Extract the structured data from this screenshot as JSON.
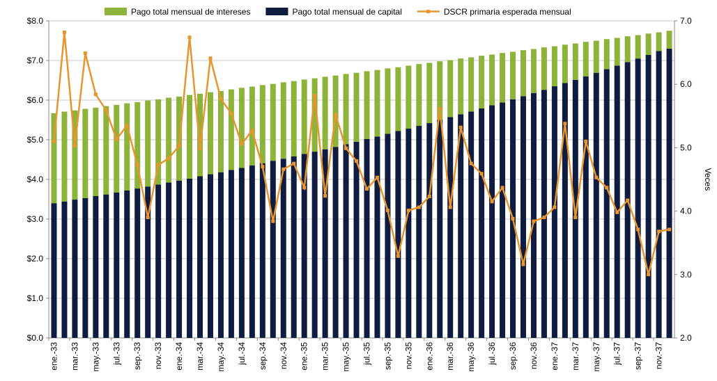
{
  "chart_data": {
    "type": "bar_line",
    "categories": [
      "ene.-33",
      null,
      "mar.-33",
      null,
      "may.-33",
      null,
      "jul.-33",
      null,
      "sep.-33",
      null,
      "nov.-33",
      null,
      "ene.-34",
      null,
      "mar.-34",
      null,
      "may.-34",
      null,
      "jul.-34",
      null,
      "sep.-34",
      null,
      "nov.-34",
      null,
      "ene.-35",
      null,
      "mar.-35",
      null,
      "may.-35",
      null,
      "jul.-35",
      null,
      "sep.-35",
      null,
      "nov.-35",
      null,
      "ene.-36",
      null,
      "mar.-36",
      null,
      "may.-36",
      null,
      "jul.-36",
      null,
      "sep.-36",
      null,
      "nov.-36",
      null,
      "ene.-37",
      null,
      "mar.-37",
      null,
      "may.-37",
      null,
      "jul.-37",
      null,
      "sep.-37",
      null,
      "nov.-37",
      null
    ],
    "series": [
      {
        "name": "Pago total mensual de capital",
        "color": "#0f1c3f",
        "kind": "bar",
        "values": [
          3.4,
          3.44,
          3.49,
          3.53,
          3.58,
          3.62,
          3.67,
          3.72,
          3.77,
          3.82,
          3.87,
          3.92,
          3.97,
          4.02,
          4.08,
          4.13,
          4.18,
          4.24,
          4.29,
          4.35,
          4.41,
          4.47,
          4.52,
          4.58,
          4.64,
          4.7,
          4.76,
          4.82,
          4.89,
          4.95,
          5.02,
          5.08,
          5.15,
          5.22,
          5.28,
          5.35,
          5.42,
          5.5,
          5.57,
          5.64,
          5.71,
          5.79,
          5.87,
          5.94,
          6.02,
          6.1,
          6.18,
          6.26,
          6.35,
          6.43,
          6.51,
          6.6,
          6.69,
          6.78,
          6.87,
          6.96,
          7.05,
          7.14,
          7.24,
          7.3
        ]
      },
      {
        "name": "Pago total mensual de intereses",
        "color": "#8db33a",
        "kind": "bar",
        "values": [
          2.27,
          2.27,
          2.25,
          2.25,
          2.23,
          2.23,
          2.21,
          2.2,
          2.18,
          2.17,
          2.15,
          2.14,
          2.12,
          2.11,
          2.08,
          2.07,
          2.05,
          2.03,
          2.02,
          1.99,
          1.97,
          1.94,
          1.93,
          1.9,
          1.88,
          1.85,
          1.83,
          1.8,
          1.77,
          1.74,
          1.71,
          1.68,
          1.65,
          1.61,
          1.59,
          1.56,
          1.52,
          1.48,
          1.44,
          1.41,
          1.37,
          1.33,
          1.28,
          1.25,
          1.2,
          1.16,
          1.11,
          1.07,
          1.01,
          0.97,
          0.92,
          0.87,
          0.81,
          0.76,
          0.7,
          0.65,
          0.59,
          0.54,
          0.47,
          0.45
        ]
      },
      {
        "name": "DSCR primaria esperada mensual",
        "color": "#e8952e",
        "kind": "line",
        "axis": "y2",
        "values": [
          5.1,
          6.82,
          5.03,
          6.49,
          5.84,
          5.59,
          5.13,
          5.35,
          4.73,
          3.9,
          4.73,
          4.83,
          5.03,
          6.74,
          4.99,
          6.41,
          5.77,
          5.54,
          5.06,
          5.27,
          4.7,
          3.84,
          4.66,
          4.75,
          4.37,
          5.82,
          4.24,
          5.52,
          4.99,
          4.79,
          4.35,
          4.53,
          4.01,
          3.29,
          4.01,
          4.06,
          4.23,
          5.61,
          4.06,
          5.32,
          4.75,
          4.59,
          4.15,
          4.37,
          3.88,
          3.16,
          3.84,
          3.9,
          4.06,
          5.38,
          3.9,
          5.1,
          4.53,
          4.37,
          3.98,
          4.17,
          3.71,
          3.0,
          3.68,
          3.71
        ]
      }
    ],
    "legend_order": [
      1,
      0,
      2
    ],
    "ylim": [
      0,
      8
    ],
    "yticks": [
      {
        "value": 0,
        "label": "$0.0"
      },
      {
        "value": 1,
        "label": "$1.0"
      },
      {
        "value": 2,
        "label": "$2.0"
      },
      {
        "value": 3,
        "label": "$3.0"
      },
      {
        "value": 4,
        "label": "$4.0"
      },
      {
        "value": 5,
        "label": "$5.0"
      },
      {
        "value": 6,
        "label": "$6.0"
      },
      {
        "value": 7,
        "label": "$7.0"
      },
      {
        "value": 8,
        "label": "$8.0"
      }
    ],
    "y2lim": [
      2,
      7
    ],
    "y2ticks": [
      {
        "value": 2,
        "label": "2.0"
      },
      {
        "value": 3,
        "label": "3.0"
      },
      {
        "value": 4,
        "label": "4.0"
      },
      {
        "value": 5,
        "label": "5.0"
      },
      {
        "value": 6,
        "label": "6.0"
      },
      {
        "value": 7,
        "label": "7.0"
      }
    ],
    "y2label": "Veces",
    "grid": true
  }
}
